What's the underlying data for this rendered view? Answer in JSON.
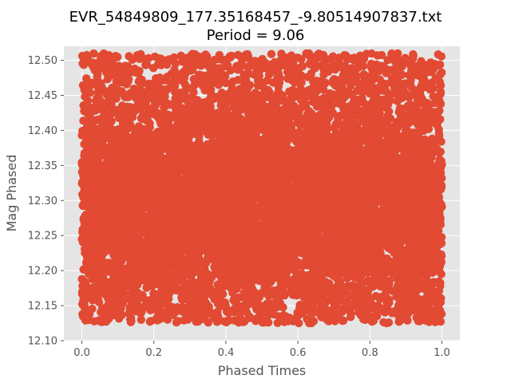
{
  "chart_data": {
    "type": "scatter",
    "title": "EVR_54849809_177.35168457_-9.80514907837.txt",
    "subtitle": "Period = 9.06",
    "xlabel": "Phased Times",
    "ylabel": "Mag Phased",
    "xlim": [
      -0.05,
      1.05
    ],
    "ylim": [
      12.1,
      12.52
    ],
    "x_ticks": [
      "0.0",
      "0.2",
      "0.4",
      "0.6",
      "0.8",
      "1.0"
    ],
    "y_ticks": [
      "12.10",
      "12.15",
      "12.20",
      "12.25",
      "12.30",
      "12.35",
      "12.40",
      "12.45",
      "12.50"
    ],
    "grid": true,
    "marker_color": "#E24A33",
    "background_color": "#E5E5E5",
    "point_count": 9000,
    "series": [
      {
        "x_range": [
          0.0,
          1.0
        ],
        "y_range": [
          12.125,
          12.51
        ],
        "y_center": 12.3,
        "description_values": {
          "x_min": 0.0,
          "x_max": 1.0,
          "y_min": 12.125,
          "y_max": 12.51
        }
      }
    ]
  }
}
